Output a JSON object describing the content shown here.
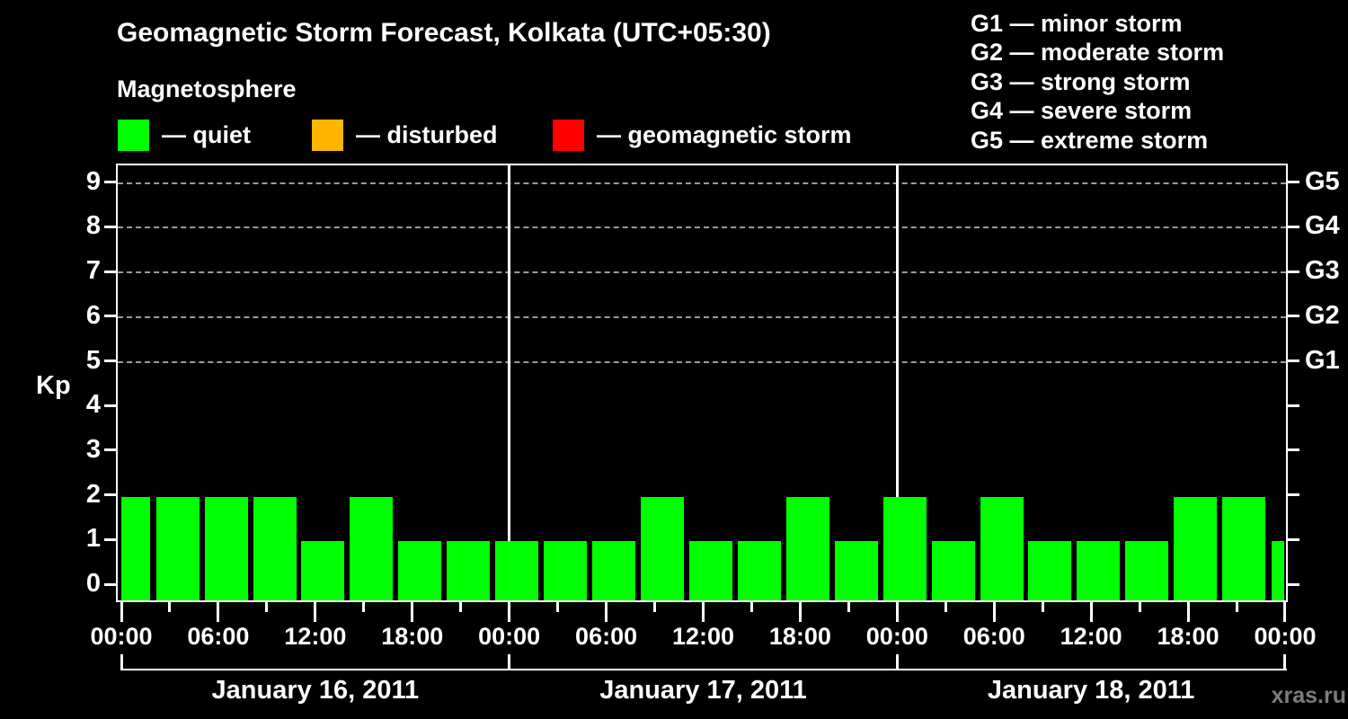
{
  "title": "Geomagnetic Storm Forecast, Kolkata (UTC+05:30)",
  "subtitle": "Magnetosphere",
  "status_legend": {
    "items": [
      {
        "name": "quiet",
        "label": "— quiet",
        "color": "#00ff00"
      },
      {
        "name": "disturbed",
        "label": "— disturbed",
        "color": "#ffb400"
      },
      {
        "name": "storm",
        "label": "— geomagnetic storm",
        "color": "#ff0000"
      }
    ]
  },
  "g_scale_legend": {
    "lines": [
      {
        "code": "G1",
        "label": "G1 — minor storm"
      },
      {
        "code": "G2",
        "label": "G2 — moderate storm"
      },
      {
        "code": "G3",
        "label": "G3 — strong storm"
      },
      {
        "code": "G4",
        "label": "G4 — severe storm"
      },
      {
        "code": "G5",
        "label": "G5 — extreme storm"
      }
    ]
  },
  "watermark": "xras.ru",
  "chart_data": {
    "type": "bar",
    "title": "Geomagnetic Storm Forecast, Kolkata (UTC+05:30)",
    "ylabel": "Kp",
    "ylim": [
      0,
      9.6
    ],
    "y_ticks": [
      0,
      1,
      2,
      3,
      4,
      5,
      6,
      7,
      8,
      9
    ],
    "gridlines_at_kp": [
      5,
      6,
      7,
      8,
      9
    ],
    "grid": "dashed horizontal at storm levels only",
    "right_axis": [
      {
        "label": "G1",
        "kp": 5
      },
      {
        "label": "G2",
        "kp": 6
      },
      {
        "label": "G3",
        "kp": 7
      },
      {
        "label": "G4",
        "kp": 8
      },
      {
        "label": "G5",
        "kp": 9
      }
    ],
    "x_major_tick_labels": [
      "00:00",
      "06:00",
      "12:00",
      "18:00",
      "00:00",
      "06:00",
      "12:00",
      "18:00",
      "00:00",
      "06:00",
      "12:00",
      "18:00",
      "00:00"
    ],
    "day_labels": [
      "January 16, 2011",
      "January 17, 2011",
      "January 18, 2011"
    ],
    "interval_hours": 3,
    "bar_status_all": "quiet",
    "bar_color": "#00ff00",
    "series": [
      {
        "name": "Kp forecast",
        "values": [
          2,
          2,
          2,
          2,
          1,
          2,
          1,
          1,
          1,
          1,
          1,
          2,
          1,
          1,
          2,
          1,
          2,
          1,
          2,
          1,
          1,
          1,
          2,
          2,
          1
        ]
      }
    ]
  }
}
